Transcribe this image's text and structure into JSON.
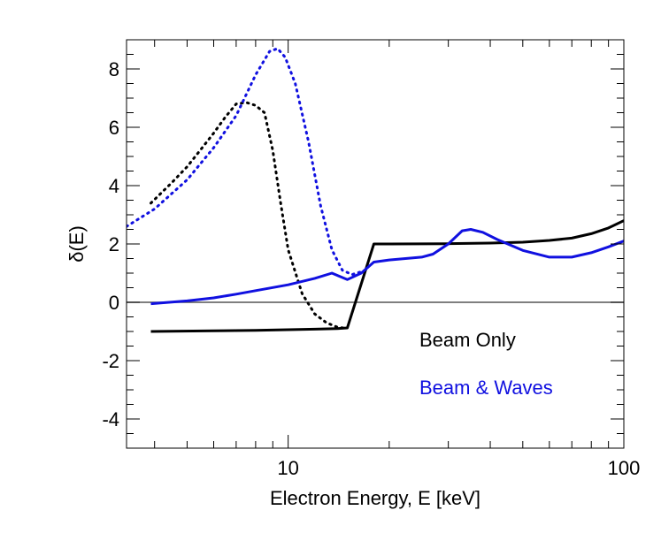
{
  "chart_data": {
    "type": "line",
    "xlabel": "Electron Energy, E [keV]",
    "ylabel": "δ(E)",
    "xscale": "log",
    "xlim": [
      3.3,
      100
    ],
    "ylim": [
      -5,
      9
    ],
    "x_ticks": [
      10,
      100
    ],
    "x_tick_labels": [
      "10",
      "100"
    ],
    "y_ticks": [
      -4,
      -2,
      0,
      2,
      4,
      6,
      8
    ],
    "y_tick_labels": [
      "-4",
      "-2",
      "0",
      "2",
      "4",
      "6",
      "8"
    ],
    "reference_line": {
      "y": 0,
      "color": "#555555"
    },
    "grid": false,
    "legend": {
      "placement": "bottom-right",
      "entries": [
        {
          "label": "Beam Only",
          "color": "#000000"
        },
        {
          "label": "Beam & Waves",
          "color": "#1010e0"
        }
      ]
    },
    "series": [
      {
        "group": "Beam Only",
        "color": "#000000",
        "style": "solid",
        "x": [
          3.9,
          6,
          8,
          10,
          12,
          14,
          15,
          18,
          20,
          30,
          40,
          50,
          60,
          70,
          80,
          90,
          100
        ],
        "y": [
          -1.0,
          -0.98,
          -0.96,
          -0.94,
          -0.92,
          -0.9,
          -0.88,
          2.0,
          2.0,
          2.01,
          2.03,
          2.06,
          2.12,
          2.2,
          2.35,
          2.55,
          2.8
        ]
      },
      {
        "group": "Beam Only",
        "color": "#000000",
        "style": "dotted",
        "x": [
          3.9,
          4.5,
          5,
          5.5,
          6,
          6.5,
          7,
          7.5,
          8,
          8.5,
          9,
          9.5,
          10,
          11,
          12,
          13,
          14,
          15
        ],
        "y": [
          3.4,
          4.1,
          4.65,
          5.25,
          5.8,
          6.35,
          6.8,
          6.85,
          6.75,
          6.5,
          5.2,
          3.4,
          1.8,
          0.3,
          -0.4,
          -0.7,
          -0.85,
          -0.9
        ]
      },
      {
        "group": "Beam & Waves",
        "color": "#1010e0",
        "style": "solid",
        "x": [
          3.9,
          5,
          6,
          7,
          8,
          10,
          12,
          13.5,
          15,
          16.5,
          18,
          20,
          25,
          27,
          30,
          33,
          35,
          38,
          42,
          50,
          60,
          70,
          80,
          90,
          100
        ],
        "y": [
          -0.05,
          0.05,
          0.15,
          0.28,
          0.4,
          0.6,
          0.82,
          1.0,
          0.78,
          1.0,
          1.38,
          1.45,
          1.55,
          1.65,
          2.0,
          2.45,
          2.5,
          2.4,
          2.15,
          1.78,
          1.55,
          1.55,
          1.7,
          1.9,
          2.1
        ]
      },
      {
        "group": "Beam & Waves",
        "color": "#1010e0",
        "style": "dotted",
        "x": [
          3.3,
          4,
          5,
          6,
          7,
          8,
          8.8,
          9.3,
          9.8,
          10.5,
          11.5,
          12.5,
          13.5,
          14.5,
          15.5,
          16.5
        ],
        "y": [
          2.6,
          3.2,
          4.2,
          5.3,
          6.4,
          7.8,
          8.6,
          8.7,
          8.4,
          7.5,
          5.5,
          3.3,
          1.8,
          1.1,
          0.95,
          1.05
        ]
      }
    ]
  }
}
